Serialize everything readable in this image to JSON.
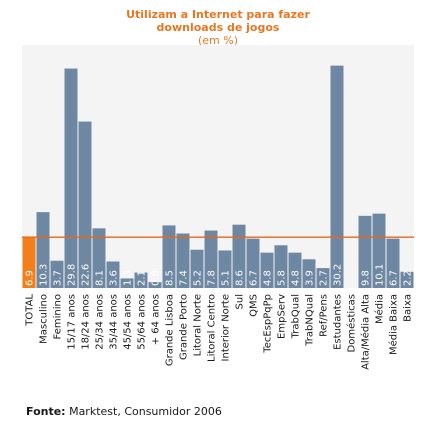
{
  "header": {
    "title_line1": "Utilizam a Internet para fazer",
    "title_line2": "downloads de jogos",
    "subtitle": "(em %)"
  },
  "source": {
    "label": "Fonte:",
    "text": "Marktest, Consumidor 2006"
  },
  "colors": {
    "bar": "#6e87a2",
    "highlight": "#f07f1c",
    "title": "#e87722",
    "reference_line": "#e8661a",
    "value_label": "#ffffff",
    "text": "#1a1a1a"
  },
  "chart_data": {
    "type": "bar",
    "title": "Utilizam a Internet para fazer downloads de jogos",
    "subtitle": "(em %)",
    "xlabel": "",
    "ylabel": "",
    "ylim": [
      0,
      33
    ],
    "reference_line": 6.9,
    "highlight_index": 0,
    "categories": [
      "TOTAL",
      "Masculino",
      "Feminino",
      "15/17 anos",
      "18/24 anos",
      "25/34 anos",
      "35/44 anos",
      "45/54 anos",
      "55/64 anos",
      "+ 64 anos",
      "Grande Lisboa",
      "Grande Porto",
      "Litoral Norte",
      "Litoral Centro",
      "Interior Norte",
      "Sul",
      "QMS",
      "TecEspPqPp",
      "EmpServ",
      "TrabQual",
      "TrabNQual",
      "Ref/Pens",
      "Estudantes",
      "Domésticas",
      "Alta/Média Alta",
      "Média",
      "Média Baixa",
      "Baixa"
    ],
    "values": [
      6.9,
      10.3,
      3.7,
      29.8,
      22.6,
      8.1,
      3.6,
      1.3,
      2.1,
      0.8,
      8.5,
      7.4,
      5.2,
      7.8,
      5.1,
      8.6,
      6.7,
      4.8,
      5.8,
      4.8,
      3.9,
      2.7,
      30.2,
      0.0,
      9.8,
      10.1,
      6.7,
      2.2
    ],
    "value_labels": [
      "6.9",
      "10.3",
      "3.7",
      "29.8",
      "22.6",
      "8.1",
      "3.6",
      "1.3",
      "2.1",
      "0.8",
      "8.5",
      "7.4",
      "5.2",
      "7.8",
      "5.1",
      "8.6",
      "6.7",
      "4.8",
      "5.8",
      "4.8",
      "3.9",
      "2.7",
      "30.2",
      "",
      "9.8",
      "10.1",
      "6.7",
      "2.2"
    ],
    "grid": false,
    "legend": "none"
  }
}
